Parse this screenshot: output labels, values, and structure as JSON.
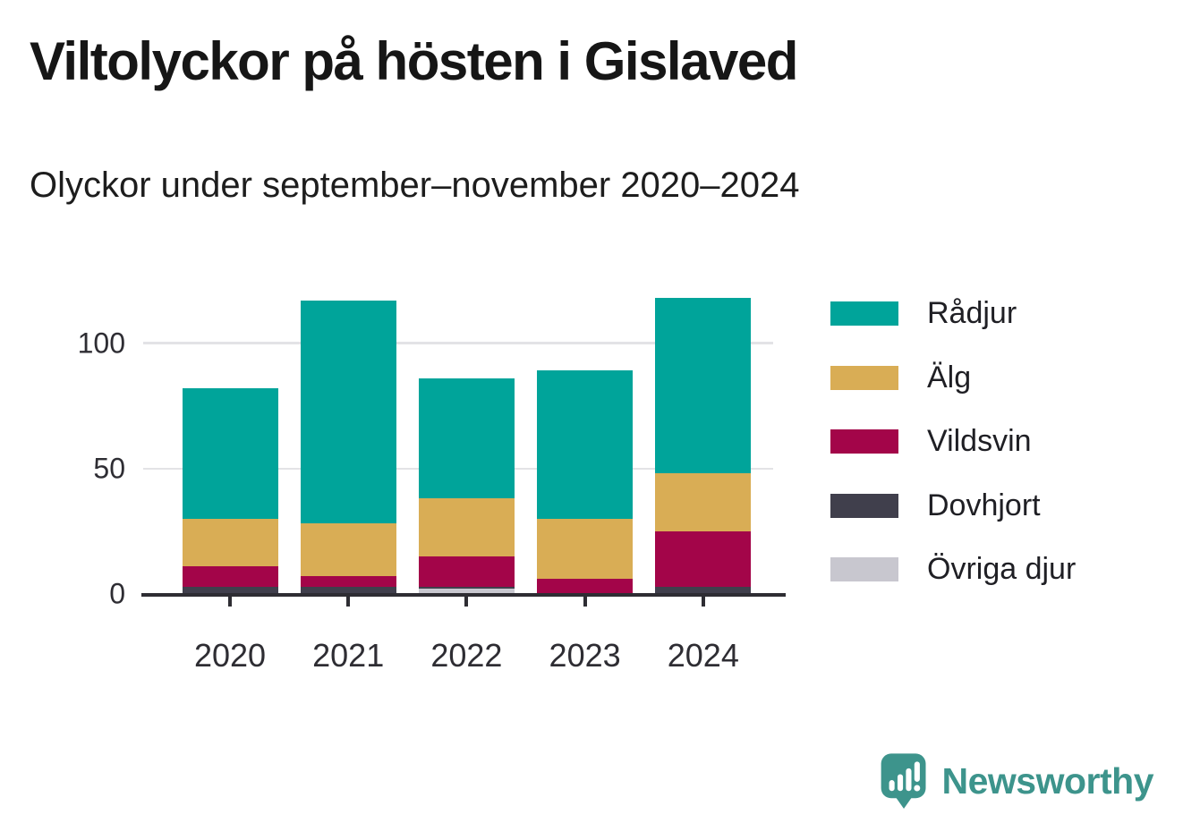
{
  "header": {
    "title": "Viltolyckor på hösten i Gislaved",
    "subtitle": "Olyckor under september–november 2020–2024"
  },
  "chart_data": {
    "type": "bar",
    "stacked": true,
    "title": "Viltolyckor på hösten i Gislaved",
    "subtitle": "Olyckor under september–november 2020–2024",
    "categories": [
      "2020",
      "2021",
      "2022",
      "2023",
      "2024"
    ],
    "series": [
      {
        "name": "Rådjur",
        "color": "#00a49a",
        "values": [
          52,
          89,
          48,
          59,
          70
        ]
      },
      {
        "name": "Älg",
        "color": "#d9ad55",
        "values": [
          19,
          21,
          23,
          24,
          23
        ]
      },
      {
        "name": "Vildsvin",
        "color": "#a30549",
        "values": [
          8,
          4,
          12,
          6,
          22
        ]
      },
      {
        "name": "Dovhjort",
        "color": "#403f4c",
        "values": [
          3,
          3,
          1,
          0,
          3
        ]
      },
      {
        "name": "Övriga djur",
        "color": "#c8c7cf",
        "values": [
          0,
          0,
          2,
          0,
          0
        ]
      }
    ],
    "stack_order_bottom_to_top": [
      "Övriga djur",
      "Dovhjort",
      "Vildsvin",
      "Älg",
      "Rådjur"
    ],
    "totals": [
      82,
      117,
      86,
      89,
      118
    ],
    "xlabel": "",
    "ylabel": "",
    "y_ticks": [
      0,
      50,
      100
    ],
    "ylim": [
      0,
      125
    ],
    "grid": "horizontal",
    "gridline_color": "#e3e3e6",
    "axis_color": "#2e2d33",
    "legend_position": "right"
  },
  "footer": {
    "brand": "Newsworthy",
    "brand_color": "#3d948c",
    "logo_icon": "speech-bubble-bar-chart-exclamation-icon"
  }
}
